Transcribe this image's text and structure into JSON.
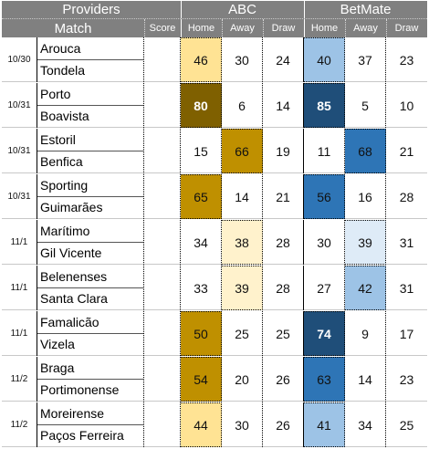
{
  "header": {
    "providers_label": "Providers",
    "abc_label": "ABC",
    "betmate_label": "BetMate",
    "match_label": "Match",
    "score_label": "Score",
    "home_label": "Home",
    "away_label": "Away",
    "draw_label": "Draw"
  },
  "colors": {
    "header_bg": "#808080",
    "abc_light": "#fff2cc",
    "abc_mid": "#ffe394",
    "abc_dark": "#bf9000",
    "abc_darkest": "#7f6000",
    "betmate_light": "#deebf7",
    "betmate_mid": "#9dc3e6",
    "betmate_dark": "#2e75b6",
    "betmate_darkest": "#1f4e79"
  },
  "matches": [
    {
      "date": "10/30",
      "home": "Arouca",
      "away": "Tondela",
      "score": "",
      "abc": [
        46,
        30,
        24
      ],
      "betmate": [
        40,
        37,
        23
      ]
    },
    {
      "date": "10/31",
      "home": "Porto",
      "away": "Boavista",
      "score": "",
      "abc": [
        80,
        6,
        14
      ],
      "betmate": [
        85,
        5,
        10
      ]
    },
    {
      "date": "10/31",
      "home": "Estoril",
      "away": "Benfica",
      "score": "",
      "abc": [
        15,
        66,
        19
      ],
      "betmate": [
        11,
        68,
        21
      ]
    },
    {
      "date": "10/31",
      "home": "Sporting",
      "away": "Guimarães",
      "score": "",
      "abc": [
        65,
        14,
        21
      ],
      "betmate": [
        56,
        16,
        28
      ]
    },
    {
      "date": "11/1",
      "home": "Marítimo",
      "away": "Gil Vicente",
      "score": "",
      "abc": [
        34,
        38,
        28
      ],
      "betmate": [
        30,
        39,
        31
      ]
    },
    {
      "date": "11/1",
      "home": "Belenenses",
      "away": "Santa Clara",
      "score": "",
      "abc": [
        33,
        39,
        28
      ],
      "betmate": [
        27,
        42,
        31
      ]
    },
    {
      "date": "11/1",
      "home": "Famalicão",
      "away": "Vizela",
      "score": "",
      "abc": [
        50,
        25,
        25
      ],
      "betmate": [
        74,
        9,
        17
      ]
    },
    {
      "date": "11/2",
      "home": "Braga",
      "away": "Portimonense",
      "score": "",
      "abc": [
        54,
        20,
        26
      ],
      "betmate": [
        63,
        14,
        23
      ]
    },
    {
      "date": "11/2",
      "home": "Moreirense",
      "away": "Paços Ferreira",
      "score": "",
      "abc": [
        44,
        30,
        26
      ],
      "betmate": [
        41,
        34,
        25
      ]
    }
  ],
  "highlights": {
    "abc": [
      {
        "match": 0,
        "col": 0,
        "level": 1
      },
      {
        "match": 1,
        "col": 0,
        "level": 3
      },
      {
        "match": 2,
        "col": 1,
        "level": 2
      },
      {
        "match": 3,
        "col": 0,
        "level": 2
      },
      {
        "match": 4,
        "col": 1,
        "level": 0
      },
      {
        "match": 5,
        "col": 1,
        "level": 0
      },
      {
        "match": 6,
        "col": 0,
        "level": 2
      },
      {
        "match": 7,
        "col": 0,
        "level": 2
      },
      {
        "match": 8,
        "col": 0,
        "level": 1
      }
    ],
    "betmate": [
      {
        "match": 0,
        "col": 0,
        "level": 1
      },
      {
        "match": 1,
        "col": 0,
        "level": 3
      },
      {
        "match": 2,
        "col": 1,
        "level": 2
      },
      {
        "match": 3,
        "col": 0,
        "level": 2
      },
      {
        "match": 4,
        "col": 1,
        "level": 0
      },
      {
        "match": 5,
        "col": 1,
        "level": 1
      },
      {
        "match": 6,
        "col": 0,
        "level": 3
      },
      {
        "match": 7,
        "col": 0,
        "level": 2
      },
      {
        "match": 8,
        "col": 0,
        "level": 1
      }
    ]
  }
}
